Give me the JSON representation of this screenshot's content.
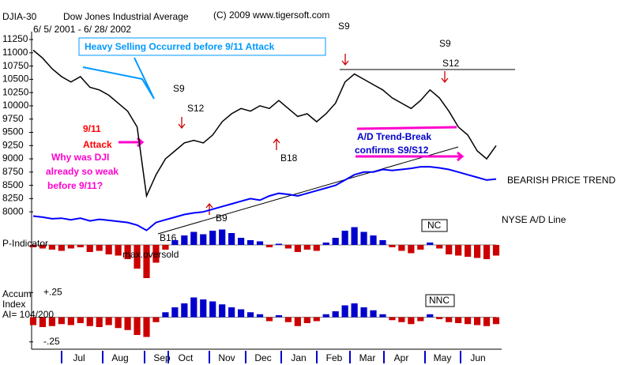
{
  "chart_data": [
    {
      "type": "line",
      "title": "Dow Jones Industrial Average",
      "symbol": "DJIA-30",
      "subtitle": "6/ 5/ 2001 - 6/ 28/ 2002",
      "credit": "(C) 2009 www.tigersoft.com",
      "ylim": [
        7600,
        11400
      ],
      "yticks": [
        8000,
        8250,
        8500,
        8750,
        9000,
        9250,
        9500,
        9750,
        10000,
        10250,
        10500,
        10750,
        11000,
        11250
      ],
      "series": [
        {
          "color": "#000000",
          "values": [
            11050,
            10900,
            10700,
            10550,
            10450,
            10550,
            10350,
            10300,
            10200,
            10050,
            9900,
            9600,
            8300,
            8700,
            9000,
            9150,
            9300,
            9350,
            9300,
            9450,
            9700,
            9850,
            9950,
            9900,
            10000,
            9950,
            10100,
            9950,
            9800,
            9850,
            9700,
            9850,
            10050,
            10450,
            10600,
            10500,
            10400,
            10300,
            10150,
            10050,
            9950,
            10100,
            10300,
            10150,
            9900,
            9600,
            9450,
            9150,
            9000,
            9250
          ]
        },
        {
          "color": "#0000ff",
          "values": [
            7920,
            7900,
            7870,
            7880,
            7850,
            7880,
            7830,
            7860,
            7840,
            7820,
            7800,
            7750,
            7650,
            7800,
            7850,
            7900,
            7950,
            7980,
            8000,
            8050,
            8100,
            8150,
            8200,
            8250,
            8220,
            8300,
            8350,
            8330,
            8300,
            8350,
            8400,
            8450,
            8500,
            8600,
            8700,
            8750,
            8750,
            8800,
            8780,
            8800,
            8820,
            8850,
            8850,
            8830,
            8800,
            8750,
            8700,
            8650,
            8600,
            8620
          ]
        }
      ],
      "annotations": [
        "S9",
        "S9",
        "S12",
        "S9",
        "S12",
        "Heavy Selling Occurred before 9/11 Attack",
        "9/11",
        "Attack",
        "Why was DJI",
        "already so weak",
        "before 9/11?",
        "A/D Trend-Break",
        "confirms S9/S12",
        "B18",
        "B9",
        "B16",
        "BEARISH PRICE TREND",
        "NYSE A/D Line"
      ]
    },
    {
      "type": "bar",
      "title": "P-Indicator",
      "tag": "NC",
      "note": "max.oversold",
      "ylim": [
        -300,
        200
      ],
      "values": [
        -20,
        -30,
        -40,
        -50,
        -30,
        -20,
        -60,
        -50,
        -80,
        -90,
        -120,
        -200,
        -280,
        -150,
        -40,
        40,
        80,
        110,
        90,
        120,
        130,
        100,
        60,
        40,
        30,
        -20,
        10,
        -30,
        -60,
        -40,
        -50,
        20,
        60,
        120,
        150,
        110,
        80,
        40,
        -20,
        -50,
        -70,
        -40,
        20,
        -30,
        -80,
        -90,
        -100,
        -110,
        -120,
        -90
      ],
      "pos_color": "#0000cc",
      "neg_color": "#cc0000"
    },
    {
      "type": "bar",
      "title_lines": [
        "Accum",
        "Index"
      ],
      "ai": "AI= 104/200",
      "tag": "NNC",
      "ylim": [
        -0.3,
        0.3
      ],
      "yticks": [
        {
          "value": 0.25,
          "label": "+.25"
        },
        {
          "value": -0.25,
          "label": "-.25"
        }
      ],
      "values": [
        -0.08,
        -0.1,
        -0.09,
        -0.07,
        -0.08,
        -0.06,
        -0.09,
        -0.1,
        -0.08,
        -0.11,
        -0.13,
        -0.18,
        -0.2,
        -0.05,
        0.05,
        0.1,
        0.14,
        0.2,
        0.18,
        0.16,
        0.13,
        0.1,
        0.08,
        0.05,
        0.03,
        -0.04,
        0.02,
        -0.05,
        -0.09,
        -0.06,
        -0.04,
        0.03,
        0.06,
        0.12,
        0.14,
        0.1,
        0.07,
        0.03,
        -0.03,
        -0.05,
        -0.07,
        -0.04,
        0.03,
        -0.02,
        -0.05,
        -0.06,
        -0.07,
        -0.08,
        -0.09,
        -0.07
      ],
      "pos_color": "#0000cc",
      "neg_color": "#cc0000",
      "xtick_labels": [
        "Jul",
        "Aug",
        "Sep",
        "Oct",
        "Nov",
        "Dec",
        "Jan",
        "Feb",
        "Mar",
        "Apr",
        "May",
        "Jun"
      ]
    }
  ]
}
